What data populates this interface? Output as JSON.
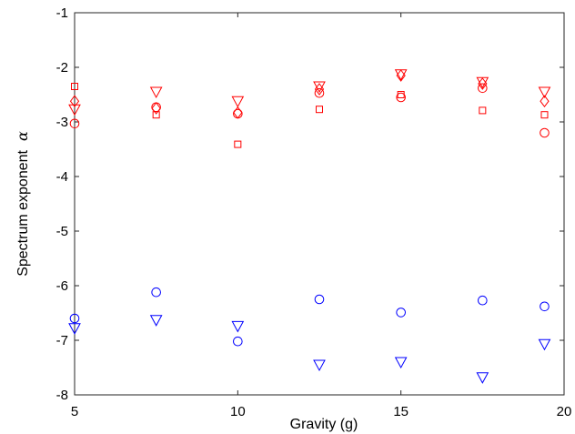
{
  "chart_data": {
    "type": "scatter",
    "xlabel": "Gravity  (g)",
    "ylabel": "Spectrum exponent",
    "ylabel_symbol": "α",
    "xlim": [
      5,
      20
    ],
    "ylim": [
      -8,
      -1
    ],
    "xticks": [
      "5",
      "10",
      "15",
      "20"
    ],
    "yticks": [
      "-1",
      "-2",
      "-3",
      "-4",
      "-5",
      "-6",
      "-7",
      "-8"
    ],
    "grid": false,
    "series": [
      {
        "marker": "square",
        "color": "#ff0000",
        "x": [
          5,
          7.5,
          10,
          12.5,
          15,
          17.5,
          19.4
        ],
        "y": [
          -2.35,
          -2.87,
          -3.41,
          -2.77,
          -2.5,
          -2.79,
          -2.87
        ]
      },
      {
        "marker": "diamond",
        "color": "#ff0000",
        "x": [
          5,
          7.5,
          10,
          12.5,
          15,
          17.5,
          19.4
        ],
        "y": [
          -2.62,
          -2.75,
          -2.83,
          -2.4,
          -2.15,
          -2.3,
          -2.62
        ]
      },
      {
        "marker": "triangle-down",
        "color": "#ff0000",
        "x": [
          5,
          7.5,
          10,
          12.5,
          15,
          17.5,
          19.4
        ],
        "y": [
          -2.77,
          -2.45,
          -2.62,
          -2.35,
          -2.13,
          -2.27,
          -2.45
        ]
      },
      {
        "marker": "circle",
        "color": "#ff0000",
        "x": [
          5,
          7.5,
          10,
          12.5,
          15,
          17.5,
          19.4
        ],
        "y": [
          -3.03,
          -2.73,
          -2.85,
          -2.47,
          -2.55,
          -2.38,
          -3.2
        ]
      },
      {
        "marker": "circle",
        "color": "#0000ff",
        "x": [
          5,
          7.5,
          10,
          12.5,
          15,
          17.5,
          19.4
        ],
        "y": [
          -6.6,
          -6.12,
          -7.02,
          -6.25,
          -6.49,
          -6.27,
          -6.38
        ]
      },
      {
        "marker": "triangle-down",
        "color": "#0000ff",
        "x": [
          5,
          7.5,
          10,
          12.5,
          15,
          17.5,
          19.4
        ],
        "y": [
          -6.78,
          -6.63,
          -6.74,
          -7.45,
          -7.4,
          -7.68,
          -7.07
        ]
      }
    ]
  }
}
